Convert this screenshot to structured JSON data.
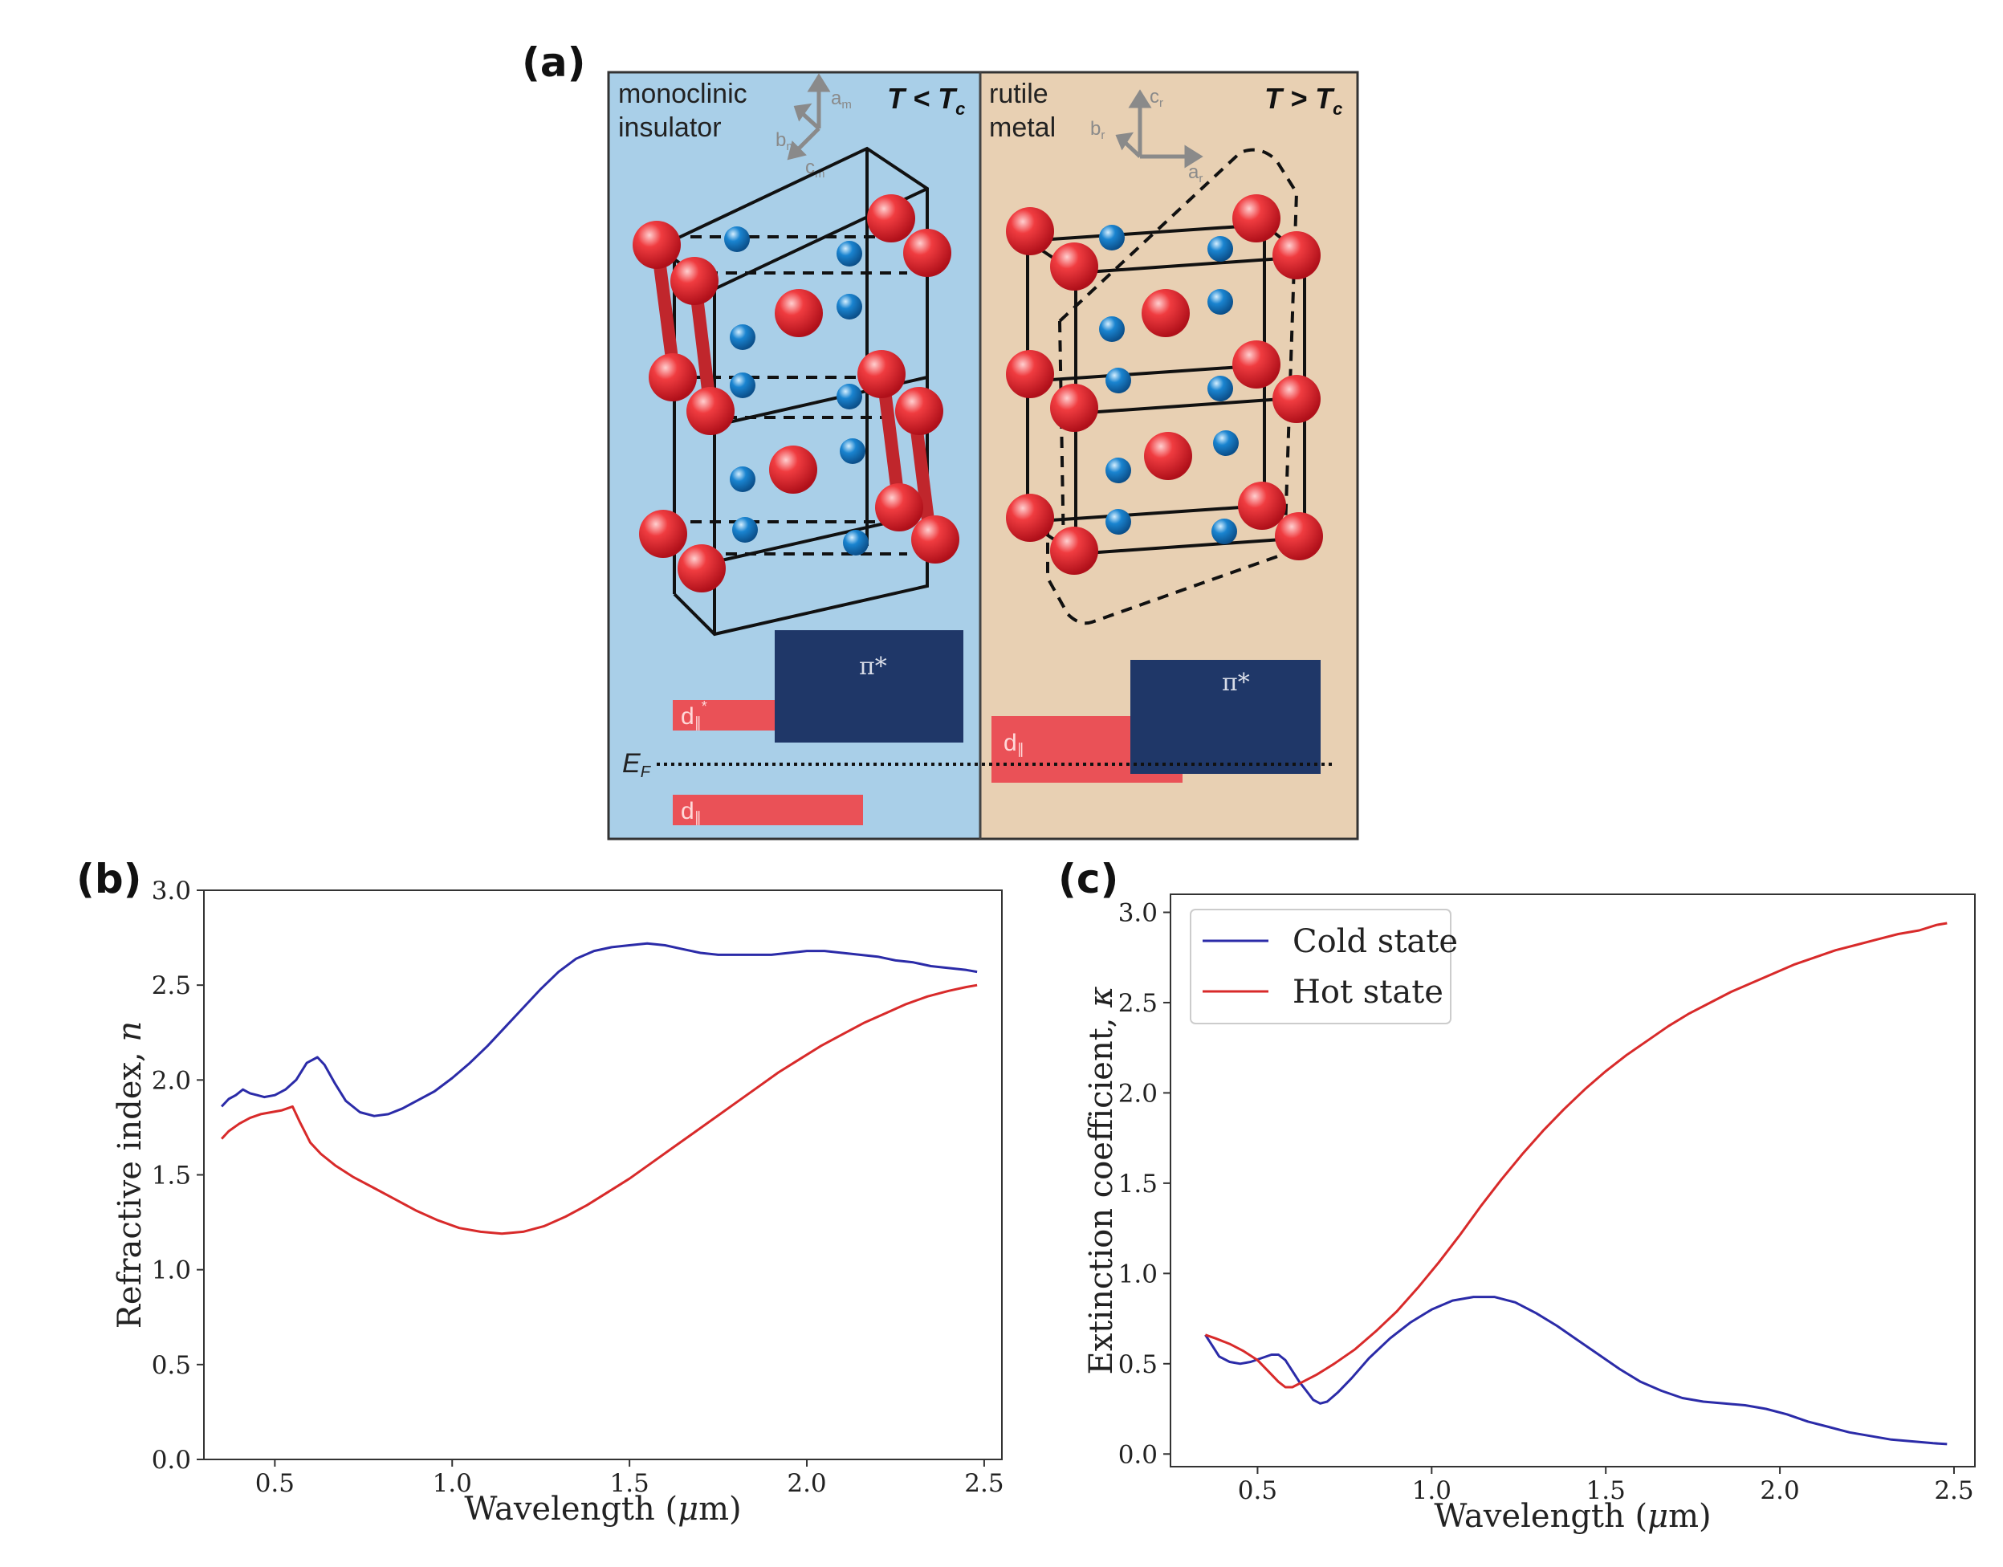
{
  "panels": {
    "a": {
      "label": "(a)",
      "left": {
        "title_line1": "monoclinic",
        "title_line2": "insulator",
        "temp_T": "T",
        "temp_op": "<",
        "temp_Tc": "T",
        "temp_sub": "c",
        "axes": {
          "a": "a",
          "a_sub": "m",
          "b": "b",
          "b_sub": "m",
          "c": "c",
          "c_sub": "m"
        },
        "bg_color": "#a9cfe8",
        "bands": {
          "pi": "π*",
          "d_upper": "d",
          "d_upper_sub": "∥",
          "d_upper_sup": "*",
          "d_lower": "d",
          "d_lower_sub": "∥"
        }
      },
      "right": {
        "title_line1": "rutile",
        "title_line2": "metal",
        "temp_T": "T",
        "temp_op": ">",
        "temp_Tc": "T",
        "temp_sub": "c",
        "axes": {
          "a": "a",
          "a_sub": "r",
          "b": "b",
          "b_sub": "r",
          "c": "c",
          "c_sub": "r"
        },
        "bg_color": "#e8d0b3",
        "bands": {
          "pi": "π*",
          "d": "d",
          "d_sub": "∥"
        }
      },
      "fermi": {
        "E": "E",
        "sub": "F"
      },
      "colors": {
        "oxygen_red": "#e8252a",
        "vanadium_blue": "#1a84d0",
        "band_navy": "#1f3768",
        "band_red": "#ea5157"
      }
    },
    "b": {
      "label": "(b)"
    },
    "c": {
      "label": "(c)"
    }
  },
  "chart_data": [
    {
      "type": "line",
      "panel": "b",
      "title": "",
      "xlabel_pre": "Wavelength (",
      "xlabel_mu": "μ",
      "xlabel_post": "m)",
      "ylabel_pre": "Refractive index, ",
      "ylabel_var": "n",
      "xlim": [
        0.3,
        2.55
      ],
      "ylim": [
        0.0,
        3.0
      ],
      "xticks": [
        "0.5",
        "1.0",
        "1.5",
        "2.0",
        "2.5"
      ],
      "xtick_values": [
        0.5,
        1.0,
        1.5,
        2.0,
        2.5
      ],
      "yticks": [
        "0.0",
        "0.5",
        "1.0",
        "1.5",
        "2.0",
        "2.5",
        "3.0"
      ],
      "ytick_values": [
        0.0,
        0.5,
        1.0,
        1.5,
        2.0,
        2.5,
        3.0
      ],
      "series": [
        {
          "name": "Cold state",
          "color": "#2b2ba8",
          "x": [
            0.35,
            0.37,
            0.39,
            0.41,
            0.43,
            0.45,
            0.47,
            0.5,
            0.53,
            0.56,
            0.59,
            0.62,
            0.64,
            0.67,
            0.7,
            0.74,
            0.78,
            0.82,
            0.86,
            0.9,
            0.95,
            1.0,
            1.05,
            1.1,
            1.15,
            1.2,
            1.25,
            1.3,
            1.35,
            1.4,
            1.45,
            1.5,
            1.55,
            1.6,
            1.65,
            1.7,
            1.75,
            1.8,
            1.85,
            1.9,
            1.95,
            2.0,
            2.05,
            2.1,
            2.15,
            2.2,
            2.25,
            2.3,
            2.35,
            2.4,
            2.45,
            2.48
          ],
          "y": [
            1.86,
            1.9,
            1.92,
            1.95,
            1.93,
            1.92,
            1.91,
            1.92,
            1.95,
            2.0,
            2.09,
            2.12,
            2.08,
            1.98,
            1.89,
            1.83,
            1.81,
            1.82,
            1.85,
            1.89,
            1.94,
            2.01,
            2.09,
            2.18,
            2.28,
            2.38,
            2.48,
            2.57,
            2.64,
            2.68,
            2.7,
            2.71,
            2.72,
            2.71,
            2.69,
            2.67,
            2.66,
            2.66,
            2.66,
            2.66,
            2.67,
            2.68,
            2.68,
            2.67,
            2.66,
            2.65,
            2.63,
            2.62,
            2.6,
            2.59,
            2.58,
            2.57
          ]
        },
        {
          "name": "Hot state",
          "color": "#d82a2a",
          "x": [
            0.35,
            0.37,
            0.4,
            0.43,
            0.46,
            0.49,
            0.52,
            0.55,
            0.57,
            0.6,
            0.63,
            0.67,
            0.72,
            0.78,
            0.84,
            0.9,
            0.96,
            1.02,
            1.08,
            1.14,
            1.2,
            1.26,
            1.32,
            1.38,
            1.44,
            1.5,
            1.56,
            1.62,
            1.68,
            1.74,
            1.8,
            1.86,
            1.92,
            1.98,
            2.04,
            2.1,
            2.16,
            2.22,
            2.28,
            2.34,
            2.4,
            2.45,
            2.48
          ],
          "y": [
            1.69,
            1.73,
            1.77,
            1.8,
            1.82,
            1.83,
            1.84,
            1.86,
            1.78,
            1.67,
            1.61,
            1.55,
            1.49,
            1.43,
            1.37,
            1.31,
            1.26,
            1.22,
            1.2,
            1.19,
            1.2,
            1.23,
            1.28,
            1.34,
            1.41,
            1.48,
            1.56,
            1.64,
            1.72,
            1.8,
            1.88,
            1.96,
            2.04,
            2.11,
            2.18,
            2.24,
            2.3,
            2.35,
            2.4,
            2.44,
            2.47,
            2.49,
            2.5
          ]
        }
      ]
    },
    {
      "type": "line",
      "panel": "c",
      "title": "",
      "xlabel_pre": "Wavelength (",
      "xlabel_mu": "μ",
      "xlabel_post": "m)",
      "ylabel_pre": "Extinction coefficient, ",
      "ylabel_var": "κ",
      "xlim": [
        0.25,
        2.56
      ],
      "ylim": [
        -0.07,
        3.1
      ],
      "xticks": [
        "0.5",
        "1.0",
        "1.5",
        "2.0",
        "2.5"
      ],
      "xtick_values": [
        0.5,
        1.0,
        1.5,
        2.0,
        2.5
      ],
      "yticks": [
        "0.0",
        "0.5",
        "1.0",
        "1.5",
        "2.0",
        "2.5",
        "3.0"
      ],
      "ytick_values": [
        0.0,
        0.5,
        1.0,
        1.5,
        2.0,
        2.5,
        3.0
      ],
      "legend": {
        "position": "top-left",
        "entries": [
          "Cold state",
          "Hot state"
        ]
      },
      "series": [
        {
          "name": "Cold state",
          "color": "#2b2ba8",
          "x": [
            0.35,
            0.37,
            0.39,
            0.42,
            0.45,
            0.48,
            0.51,
            0.54,
            0.56,
            0.58,
            0.6,
            0.62,
            0.64,
            0.66,
            0.68,
            0.7,
            0.73,
            0.77,
            0.82,
            0.88,
            0.94,
            1.0,
            1.06,
            1.12,
            1.18,
            1.24,
            1.3,
            1.36,
            1.42,
            1.48,
            1.54,
            1.6,
            1.66,
            1.72,
            1.78,
            1.84,
            1.9,
            1.96,
            2.02,
            2.08,
            2.14,
            2.2,
            2.26,
            2.32,
            2.38,
            2.44,
            2.48
          ],
          "y": [
            0.66,
            0.6,
            0.54,
            0.51,
            0.5,
            0.51,
            0.53,
            0.55,
            0.55,
            0.52,
            0.46,
            0.4,
            0.35,
            0.3,
            0.28,
            0.29,
            0.34,
            0.42,
            0.53,
            0.64,
            0.73,
            0.8,
            0.85,
            0.87,
            0.87,
            0.84,
            0.78,
            0.71,
            0.63,
            0.55,
            0.47,
            0.4,
            0.35,
            0.31,
            0.29,
            0.28,
            0.27,
            0.25,
            0.22,
            0.18,
            0.15,
            0.12,
            0.1,
            0.08,
            0.07,
            0.06,
            0.055
          ]
        },
        {
          "name": "Hot state",
          "color": "#d82a2a",
          "x": [
            0.35,
            0.38,
            0.42,
            0.46,
            0.5,
            0.53,
            0.56,
            0.58,
            0.6,
            0.63,
            0.67,
            0.72,
            0.78,
            0.84,
            0.9,
            0.96,
            1.02,
            1.08,
            1.14,
            1.2,
            1.26,
            1.32,
            1.38,
            1.44,
            1.5,
            1.56,
            1.62,
            1.68,
            1.74,
            1.8,
            1.86,
            1.92,
            1.98,
            2.04,
            2.1,
            2.16,
            2.22,
            2.28,
            2.34,
            2.4,
            2.45,
            2.48
          ],
          "y": [
            0.66,
            0.64,
            0.61,
            0.57,
            0.52,
            0.46,
            0.4,
            0.37,
            0.37,
            0.4,
            0.44,
            0.5,
            0.58,
            0.68,
            0.79,
            0.92,
            1.06,
            1.21,
            1.37,
            1.52,
            1.66,
            1.79,
            1.91,
            2.02,
            2.12,
            2.21,
            2.29,
            2.37,
            2.44,
            2.5,
            2.56,
            2.61,
            2.66,
            2.71,
            2.75,
            2.79,
            2.82,
            2.85,
            2.88,
            2.9,
            2.93,
            2.94
          ]
        }
      ]
    }
  ]
}
